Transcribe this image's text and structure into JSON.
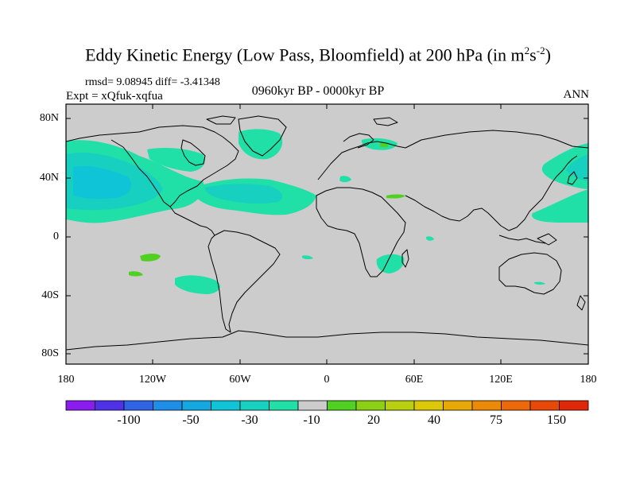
{
  "title_main": "Eddy Kinetic Energy (Low Pass, Bloomfield) at 200 hPa (in m",
  "title_sup1": "2",
  "title_mid": "s",
  "title_sup2": "-2",
  "title_end": ")",
  "stats": "rmsd= 9.08945 diff= -3.41348",
  "experiment": "Expt = xQfuk-xqfua",
  "period": "0960kyr BP - 0000kyr BP",
  "season": "ANN",
  "y_labels": [
    "80N",
    "40N",
    "0",
    "40S",
    "80S"
  ],
  "x_labels": [
    "180",
    "120W",
    "60W",
    "0",
    "60E",
    "120E",
    "180"
  ],
  "colorbar": {
    "labels": [
      "-100",
      "-50",
      "-30",
      "-10",
      "20",
      "40",
      "75",
      "150"
    ],
    "colors": [
      "#8a1cf0",
      "#4f32e8",
      "#2f64e6",
      "#1e8ee8",
      "#14a8e0",
      "#10c4d8",
      "#18d0c0",
      "#20e0a8",
      "#cccccc",
      "#50d020",
      "#8cd014",
      "#b8d010",
      "#dcc808",
      "#e8a808",
      "#ec8a08",
      "#ec6808",
      "#e84808",
      "#e02808"
    ]
  },
  "colors": {
    "land_ocean_bg": "#cccccc",
    "cyan_light": "#20e0a8",
    "cyan_mid": "#18d0c0",
    "blue_low": "#10c4d8",
    "green_pos": "#50d020"
  }
}
